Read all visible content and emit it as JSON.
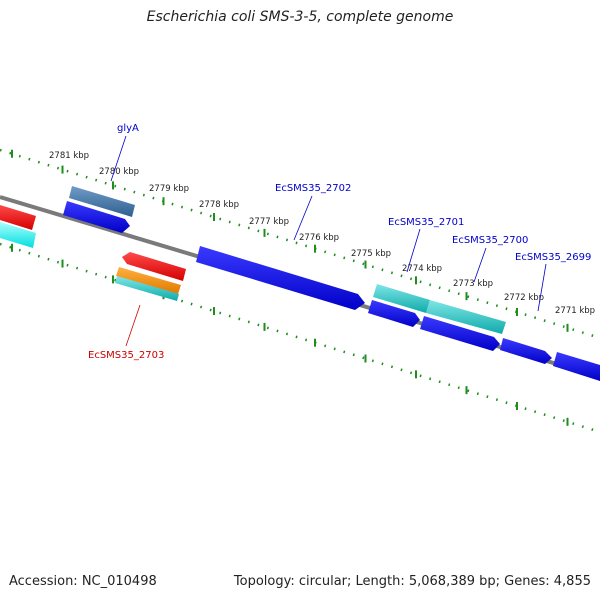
{
  "title": "Escherichia coli SMS-3-5, complete genome",
  "accession": "Accession: NC_010498",
  "summary": "Topology: circular; Length: 5,068,389 bp; Genes: 4,855",
  "colors": {
    "backbone": "#7a7a7a",
    "ticks": "#1f8c1f",
    "forward_cds": "#0a0ae6",
    "reverse_cds": "#e60a0a",
    "rna": "#19c2c2",
    "other": "#ff8c00",
    "steel": "#3f6f9f",
    "label_forward": "#0000cc",
    "label_reverse": "#cc0000"
  },
  "kbp_labels": [
    {
      "text": "2781 kbp"
    },
    {
      "text": "2780 kbp"
    },
    {
      "text": "2779 kbp"
    },
    {
      "text": "2778 kbp"
    },
    {
      "text": "2777 kbp"
    },
    {
      "text": "2776 kbp"
    },
    {
      "text": "2775 kbp"
    },
    {
      "text": "2774 kbp"
    },
    {
      "text": "2773 kbp"
    },
    {
      "text": "2772 kbp"
    },
    {
      "text": "2771 kbp"
    }
  ],
  "gene_labels": [
    {
      "text": "glyA",
      "strand": "forward"
    },
    {
      "text": "EcSMS35_2702",
      "strand": "forward"
    },
    {
      "text": "EcSMS35_2701",
      "strand": "forward"
    },
    {
      "text": "EcSMS35_2700",
      "strand": "forward"
    },
    {
      "text": "EcSMS35_2699",
      "strand": "forward"
    },
    {
      "text": "EcSMS35_2703",
      "strand": "reverse"
    }
  ]
}
